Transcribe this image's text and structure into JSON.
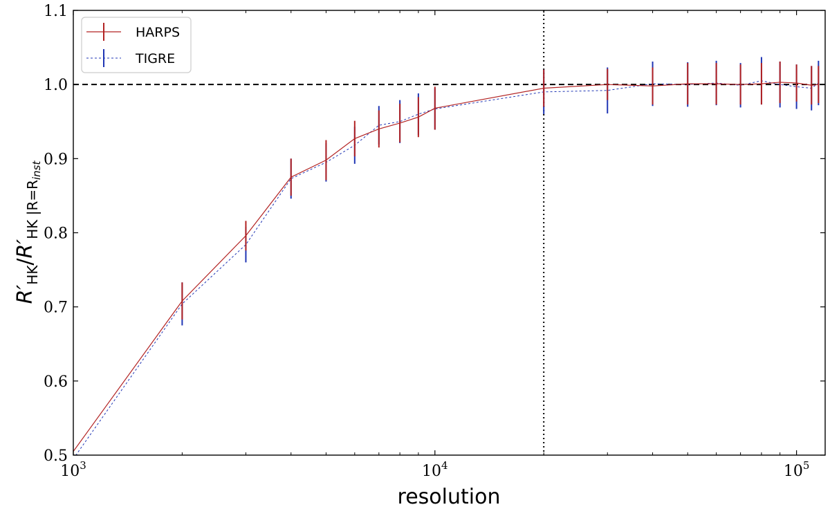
{
  "chart_data": {
    "type": "line",
    "xscale": "log",
    "xlim": [
      1000,
      120000
    ],
    "ylim": [
      0.5,
      1.1
    ],
    "xlabel": "resolution",
    "ylabel": "R′HK / R′HK |R=Rinst",
    "ylabel_parts": {
      "base1": "R′",
      "sub1": "HK",
      "slash": "/",
      "base2": "R′",
      "sub2": "HK |R=R",
      "sub2_inst": "inst"
    },
    "x_ticks": [
      {
        "value": 1000,
        "mantissa": "10",
        "exponent": "3"
      },
      {
        "value": 10000,
        "mantissa": "10",
        "exponent": "4"
      },
      {
        "value": 100000,
        "mantissa": "10",
        "exponent": "5"
      }
    ],
    "y_ticks": [
      {
        "value": 0.5,
        "label": "0.5"
      },
      {
        "value": 0.6,
        "label": "0.6"
      },
      {
        "value": 0.7,
        "label": "0.7"
      },
      {
        "value": 0.8,
        "label": "0.8"
      },
      {
        "value": 0.9,
        "label": "0.9"
      },
      {
        "value": 1.0,
        "label": "1.0"
      },
      {
        "value": 1.1,
        "label": "1.1"
      }
    ],
    "x": [
      1000,
      2000,
      3000,
      4000,
      5000,
      6000,
      7000,
      8000,
      9000,
      10000,
      20000,
      30000,
      40000,
      50000,
      60000,
      70000,
      80000,
      90000,
      100000,
      110000,
      115000
    ],
    "series": [
      {
        "name": "HARPS",
        "color": "#b22222",
        "style": "solid",
        "values": [
          0.505,
          0.708,
          0.796,
          0.875,
          0.898,
          0.927,
          0.94,
          0.948,
          0.956,
          0.968,
          0.995,
          1.0,
          0.998,
          1.001,
          1.001,
          1.0,
          1.001,
          1.003,
          1.002,
          0.999,
          1.0
        ],
        "errors": [
          0.0,
          0.025,
          0.02,
          0.025,
          0.027,
          0.024,
          0.025,
          0.026,
          0.027,
          0.029,
          0.025,
          0.021,
          0.025,
          0.028,
          0.028,
          0.027,
          0.028,
          0.028,
          0.025,
          0.026,
          0.025
        ]
      },
      {
        "name": "TIGRE",
        "color": "#1f35b4",
        "style": "dashed",
        "values": [
          0.495,
          0.704,
          0.784,
          0.873,
          0.895,
          0.918,
          0.945,
          0.95,
          0.96,
          0.967,
          0.99,
          0.992,
          1.001,
          1.0,
          1.002,
          0.999,
          1.005,
          1.0,
          0.997,
          0.995,
          1.002
        ],
        "errors": [
          0.0,
          0.029,
          0.024,
          0.027,
          0.026,
          0.025,
          0.026,
          0.029,
          0.028,
          0.028,
          0.03,
          0.031,
          0.03,
          0.03,
          0.03,
          0.03,
          0.032,
          0.031,
          0.03,
          0.03,
          0.03
        ]
      }
    ],
    "hline": {
      "y": 1.0,
      "style": "dashed",
      "color": "#000000"
    },
    "vline": {
      "x": 20000,
      "style": "dotted",
      "color": "#000000"
    },
    "legend_position": "top-left",
    "grid": false
  }
}
